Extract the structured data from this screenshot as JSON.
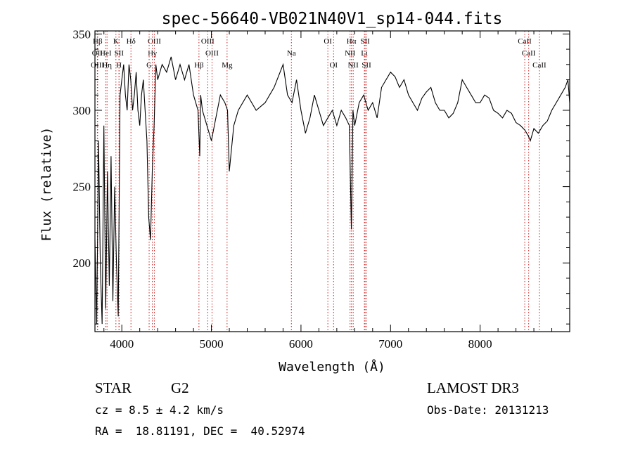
{
  "chart_data": {
    "type": "line",
    "title": "spec-56640-VB021N40V1_sp14-044.fits",
    "xlabel": "Wavelength (Å)",
    "ylabel": "Flux (relative)",
    "xlim": [
      3700,
      9000
    ],
    "ylim": [
      155,
      352
    ],
    "x_ticks": [
      4000,
      5000,
      6000,
      7000,
      8000
    ],
    "y_ticks": [
      200,
      250,
      300,
      350
    ],
    "x_minor_step": 200,
    "y_minor_step": 10,
    "spectrum_color": "#000000",
    "line_marker_color": "#cc2222",
    "series": [
      {
        "name": "flux",
        "x": [
          3700,
          3720,
          3740,
          3760,
          3780,
          3800,
          3820,
          3840,
          3860,
          3880,
          3900,
          3920,
          3940,
          3960,
          3980,
          4000,
          4020,
          4040,
          4060,
          4080,
          4100,
          4120,
          4140,
          4160,
          4180,
          4200,
          4220,
          4240,
          4260,
          4280,
          4300,
          4320,
          4340,
          4360,
          4380,
          4400,
          4450,
          4500,
          4550,
          4600,
          4650,
          4700,
          4750,
          4800,
          4850,
          4870,
          4880,
          4900,
          4950,
          5000,
          5050,
          5100,
          5150,
          5180,
          5200,
          5250,
          5300,
          5400,
          5500,
          5600,
          5700,
          5800,
          5850,
          5900,
          5950,
          6000,
          6050,
          6100,
          6150,
          6200,
          6250,
          6300,
          6350,
          6400,
          6450,
          6500,
          6540,
          6563,
          6580,
          6600,
          6650,
          6700,
          6750,
          6800,
          6850,
          6900,
          6950,
          7000,
          7050,
          7100,
          7150,
          7200,
          7250,
          7300,
          7350,
          7400,
          7450,
          7500,
          7550,
          7600,
          7650,
          7700,
          7750,
          7800,
          7850,
          7900,
          7950,
          8000,
          8050,
          8100,
          8150,
          8200,
          8250,
          8300,
          8350,
          8400,
          8450,
          8500,
          8540,
          8560,
          8600,
          8650,
          8700,
          8750,
          8800,
          8850,
          8900,
          8950,
          8980,
          9000
        ],
        "y": [
          215,
          160,
          280,
          200,
          160,
          290,
          170,
          260,
          185,
          270,
          175,
          250,
          200,
          165,
          310,
          320,
          330,
          310,
          300,
          330,
          320,
          300,
          310,
          325,
          300,
          290,
          310,
          320,
          300,
          280,
          230,
          215,
          260,
          290,
          330,
          320,
          330,
          325,
          335,
          320,
          330,
          320,
          330,
          310,
          300,
          270,
          310,
          300,
          290,
          280,
          295,
          310,
          305,
          300,
          260,
          290,
          300,
          310,
          300,
          305,
          315,
          330,
          310,
          305,
          320,
          300,
          285,
          295,
          310,
          300,
          290,
          295,
          300,
          290,
          300,
          295,
          290,
          222,
          300,
          290,
          305,
          310,
          300,
          305,
          295,
          315,
          320,
          325,
          322,
          315,
          320,
          310,
          305,
          300,
          308,
          312,
          315,
          305,
          300,
          300,
          295,
          298,
          305,
          320,
          315,
          310,
          305,
          305,
          310,
          308,
          300,
          298,
          295,
          300,
          298,
          292,
          290,
          287,
          283,
          280,
          288,
          285,
          290,
          293,
          300,
          305,
          310,
          315,
          320,
          305
        ]
      }
    ],
    "line_markers": [
      {
        "label": "Hβ",
        "wave": 3730,
        "row": 0
      },
      {
        "label": "OII",
        "wave": 3727,
        "row": 1
      },
      {
        "label": "OIII",
        "wave": 3728,
        "row": 2
      },
      {
        "label": "HeI",
        "wave": 3820,
        "row": 1
      },
      {
        "label": "Hη",
        "wave": 3835,
        "row": 2
      },
      {
        "label": "K",
        "wave": 3934,
        "row": 0
      },
      {
        "label": "SII",
        "wave": 3970,
        "row": 1
      },
      {
        "label": "H",
        "wave": 3968,
        "row": 2
      },
      {
        "label": "Hδ",
        "wave": 4102,
        "row": 0
      },
      {
        "label": "OIII",
        "wave": 4363,
        "row": 0
      },
      {
        "label": "Hγ",
        "wave": 4340,
        "row": 1
      },
      {
        "label": "G",
        "wave": 4305,
        "row": 2
      },
      {
        "label": "OIII",
        "wave": 4959,
        "row": 0
      },
      {
        "label": "OIII",
        "wave": 5007,
        "row": 1
      },
      {
        "label": "Hβ",
        "wave": 4861,
        "row": 2
      },
      {
        "label": "Mg",
        "wave": 5175,
        "row": 2
      },
      {
        "label": "Na",
        "wave": 5893,
        "row": 1
      },
      {
        "label": "OI",
        "wave": 6300,
        "row": 0
      },
      {
        "label": "OI",
        "wave": 6364,
        "row": 2
      },
      {
        "label": "Hα",
        "wave": 6563,
        "row": 0
      },
      {
        "label": "NII",
        "wave": 6548,
        "row": 1
      },
      {
        "label": "NII",
        "wave": 6583,
        "row": 2
      },
      {
        "label": "SII",
        "wave": 6716,
        "row": 0
      },
      {
        "label": "Li",
        "wave": 6708,
        "row": 1
      },
      {
        "label": "SII",
        "wave": 6731,
        "row": 2
      },
      {
        "label": "CaII",
        "wave": 8498,
        "row": 0
      },
      {
        "label": "CaII",
        "wave": 8542,
        "row": 1
      },
      {
        "label": "CaII",
        "wave": 8662,
        "row": 2
      }
    ]
  },
  "info": {
    "object_class": "STAR",
    "subclass": "G2",
    "survey": "LAMOST DR3",
    "cz": "cz = 8.5 ± 4.2 km/s",
    "obs_date": "Obs-Date: 20131213",
    "coords": "RA =  18.81191, DEC =  40.52974"
  }
}
